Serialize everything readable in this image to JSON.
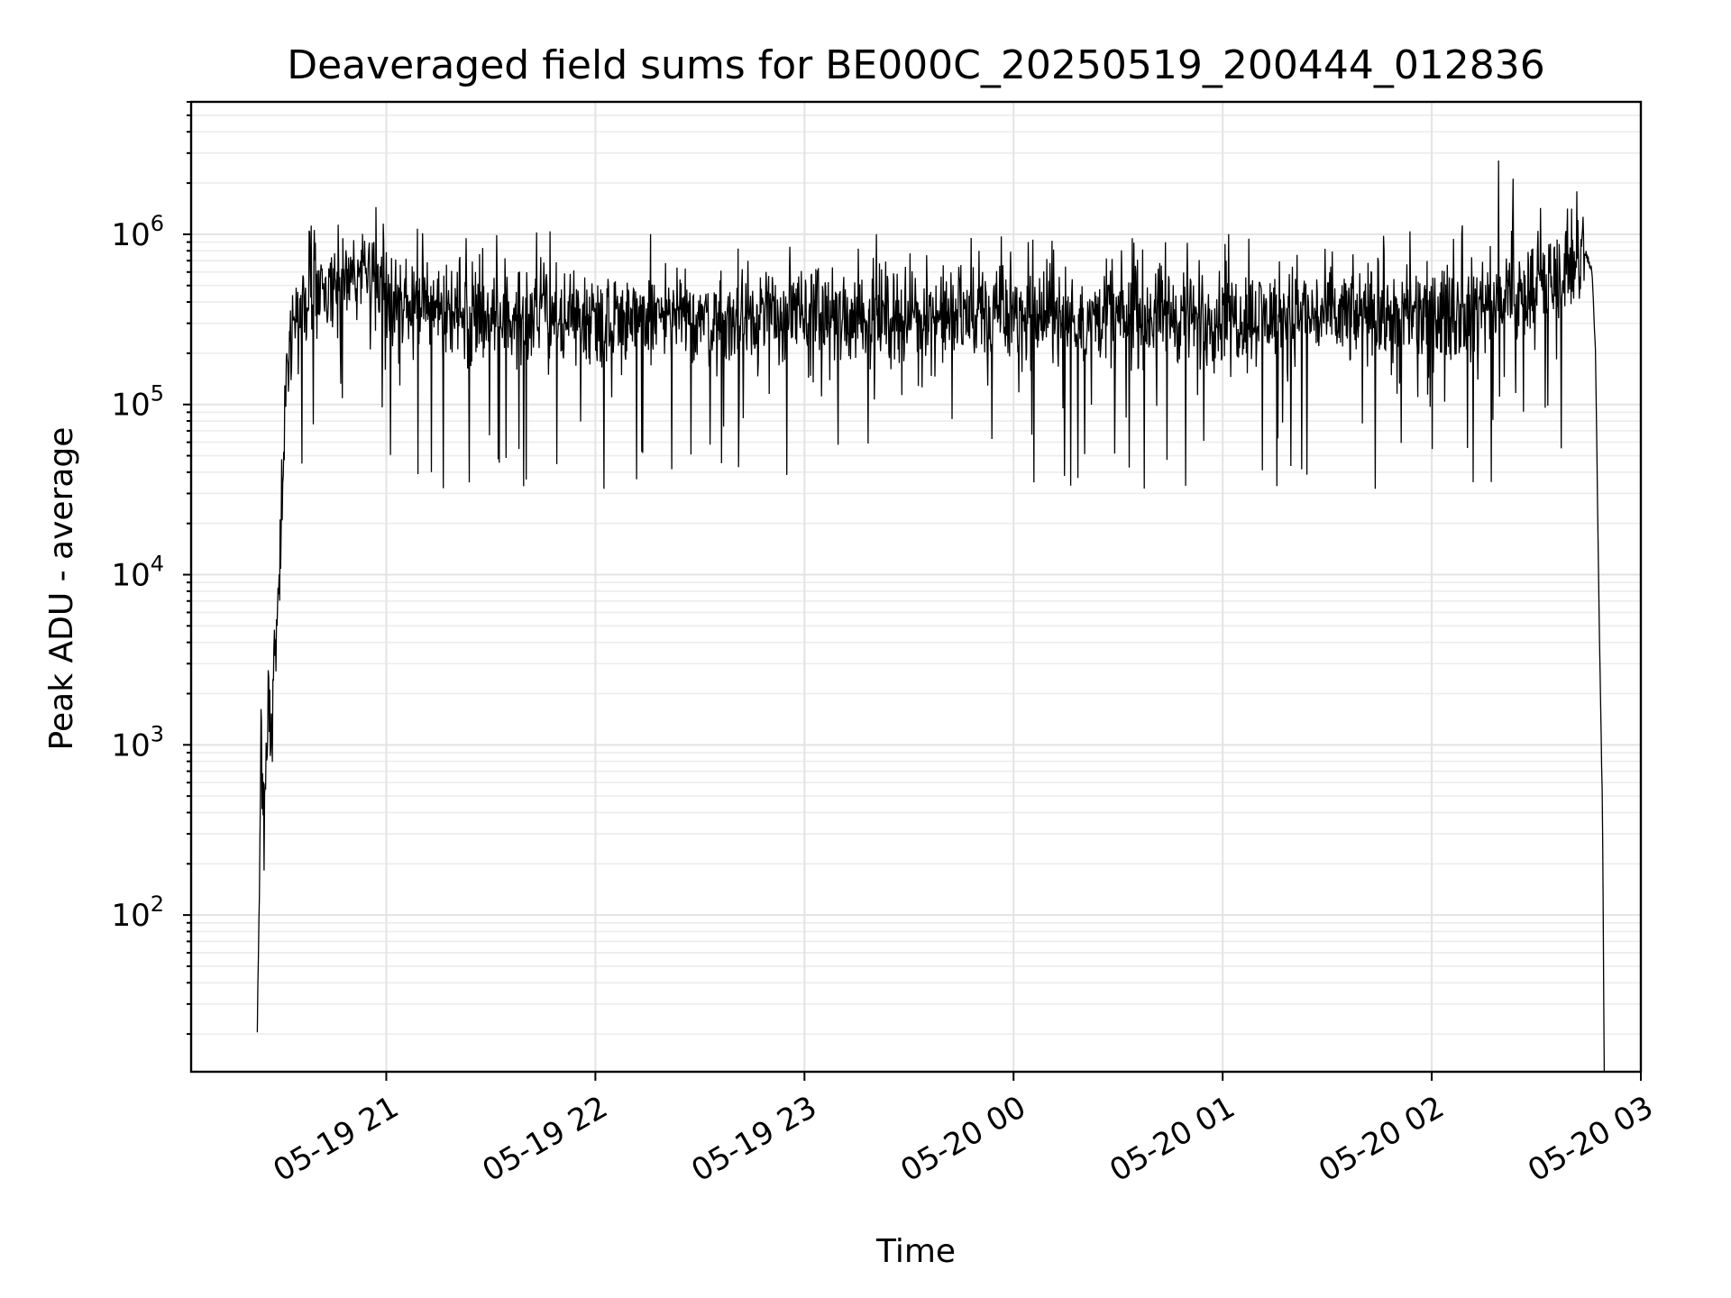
{
  "chart_data": {
    "type": "line",
    "title": "Deaveraged field sums for BE000C_20250519_200444_012836",
    "xlabel": "Time",
    "ylabel": "Peak ADU - average",
    "yscale": "log",
    "grid": true,
    "xlim": [
      "2025-05-19 20:04",
      "2025-05-20 03:00"
    ],
    "ylim": [
      12,
      6000000
    ],
    "x_ticks": [
      {
        "value": "2025-05-19 21:00",
        "label": "05-19 21"
      },
      {
        "value": "2025-05-19 22:00",
        "label": "05-19 22"
      },
      {
        "value": "2025-05-19 23:00",
        "label": "05-19 23"
      },
      {
        "value": "2025-05-20 00:00",
        "label": "05-20 00"
      },
      {
        "value": "2025-05-20 01:00",
        "label": "05-20 01"
      },
      {
        "value": "2025-05-20 02:00",
        "label": "05-20 02"
      },
      {
        "value": "2025-05-20 03:00",
        "label": "05-20 03"
      }
    ],
    "y_ticks": [
      {
        "value": 100,
        "base": "10",
        "exp": "2"
      },
      {
        "value": 1000,
        "base": "10",
        "exp": "3"
      },
      {
        "value": 10000,
        "base": "10",
        "exp": "4"
      },
      {
        "value": 100000,
        "base": "10",
        "exp": "5"
      },
      {
        "value": 1000000,
        "base": "10",
        "exp": "6"
      }
    ],
    "series": [
      {
        "color": "#000000",
        "x": [
          "2025-05-19 20:23",
          "2025-05-19 20:24",
          "2025-05-19 20:25",
          "2025-05-19 20:26",
          "2025-05-19 20:27",
          "2025-05-19 20:28",
          "2025-05-19 20:29",
          "2025-05-19 20:30",
          "2025-05-19 20:31",
          "2025-05-19 20:32",
          "2025-05-19 20:33",
          "2025-05-19 20:35",
          "2025-05-19 20:37",
          "2025-05-19 20:40",
          "2025-05-19 20:44",
          "2025-05-19 20:48",
          "2025-05-19 20:55",
          "2025-05-19 21:00",
          "2025-05-19 21:30",
          "2025-05-19 22:00",
          "2025-05-19 23:00",
          "2025-05-20 00:00",
          "2025-05-20 01:00",
          "2025-05-20 02:00",
          "2025-05-20 02:15",
          "2025-05-20 02:30",
          "2025-05-20 02:36",
          "2025-05-20 02:40",
          "2025-05-20 02:44",
          "2025-05-20 02:46",
          "2025-05-20 02:47",
          "2025-05-20 02:48",
          "2025-05-20 02:49",
          "2025-05-20 02:49:30"
        ],
        "y": [
          12,
          1200,
          260,
          2000,
          1000,
          3000,
          5000,
          30000,
          100000,
          160000,
          250000,
          320000,
          380000,
          430000,
          480000,
          540000,
          520000,
          400000,
          330000,
          330000,
          330000,
          330000,
          330000,
          330000,
          380000,
          450000,
          550000,
          700000,
          800000,
          600000,
          200000,
          6000,
          400,
          12
        ]
      }
    ],
    "noise": {
      "median": 330000,
      "min": 32000,
      "max": 3300000
    }
  }
}
